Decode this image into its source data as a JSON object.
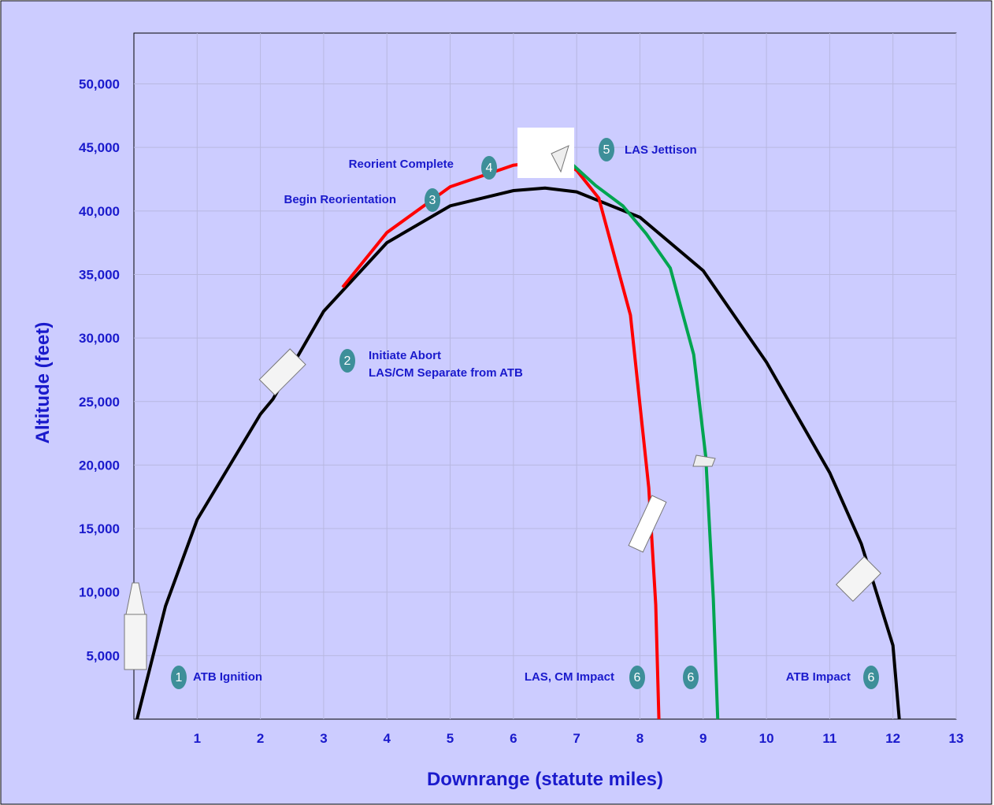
{
  "chart_data": {
    "type": "line",
    "xlabel": "Downrange (statute miles)",
    "ylabel": "Altitude (feet)",
    "xlim": [
      0,
      13
    ],
    "ylim": [
      0,
      54000
    ],
    "xticks": [
      1,
      2,
      3,
      4,
      5,
      6,
      7,
      8,
      9,
      10,
      11,
      12,
      13
    ],
    "yticks": [
      {
        "value": 5000,
        "label": "5,000"
      },
      {
        "value": 10000,
        "label": "10,000"
      },
      {
        "value": 15000,
        "label": "15,000"
      },
      {
        "value": 20000,
        "label": "20,000"
      },
      {
        "value": 25000,
        "label": "25,000"
      },
      {
        "value": 30000,
        "label": "30,000"
      },
      {
        "value": 35000,
        "label": "35,000"
      },
      {
        "value": 40000,
        "label": "40,000"
      },
      {
        "value": 45000,
        "label": "45,000"
      },
      {
        "value": 50000,
        "label": "50,000"
      }
    ],
    "grid": true,
    "series": [
      {
        "color": "#000000",
        "x": [
          0.05,
          0.5,
          1,
          2,
          2.2,
          3,
          4,
          5,
          6,
          6.5,
          7,
          8,
          9,
          10,
          11,
          11.5,
          12,
          12.1
        ],
        "values": [
          0,
          8900,
          15700,
          24000,
          25200,
          32100,
          37500,
          40400,
          41600,
          41800,
          41500,
          39500,
          35300,
          28100,
          19400,
          13800,
          5800,
          0
        ]
      },
      {
        "color": "#ff0000",
        "x": [
          3.3,
          4,
          5,
          6,
          6.7,
          7,
          7.35,
          7.85,
          8.14,
          8.25,
          8.3
        ],
        "values": [
          34000,
          38300,
          41900,
          43600,
          44000,
          43200,
          41000,
          31800,
          18200,
          9000,
          0
        ]
      },
      {
        "color": "#00a550",
        "x": [
          6.9,
          7.3,
          7.73,
          8.1,
          8.48,
          8.85,
          9.04,
          9.16,
          9.23
        ],
        "values": [
          43800,
          42000,
          40400,
          38200,
          35500,
          28700,
          20700,
          9500,
          0
        ]
      }
    ],
    "annotations": [
      {
        "badge": "1",
        "lines": [
          "ATB Ignition"
        ]
      },
      {
        "badge": "2",
        "lines": [
          "Initiate Abort",
          "LAS/CM Separate from ATB"
        ]
      },
      {
        "badge": "3",
        "lines": [
          "Begin Reorientation"
        ]
      },
      {
        "badge": "4",
        "lines": [
          "Reorient Complete"
        ]
      },
      {
        "badge": "5",
        "lines": [
          "LAS Jettison"
        ]
      },
      {
        "badge": "6",
        "lines": [
          "LAS, CM Impact"
        ]
      },
      {
        "badge": "6",
        "lines": []
      },
      {
        "badge": "6",
        "lines": [
          "ATB Impact"
        ]
      }
    ]
  }
}
